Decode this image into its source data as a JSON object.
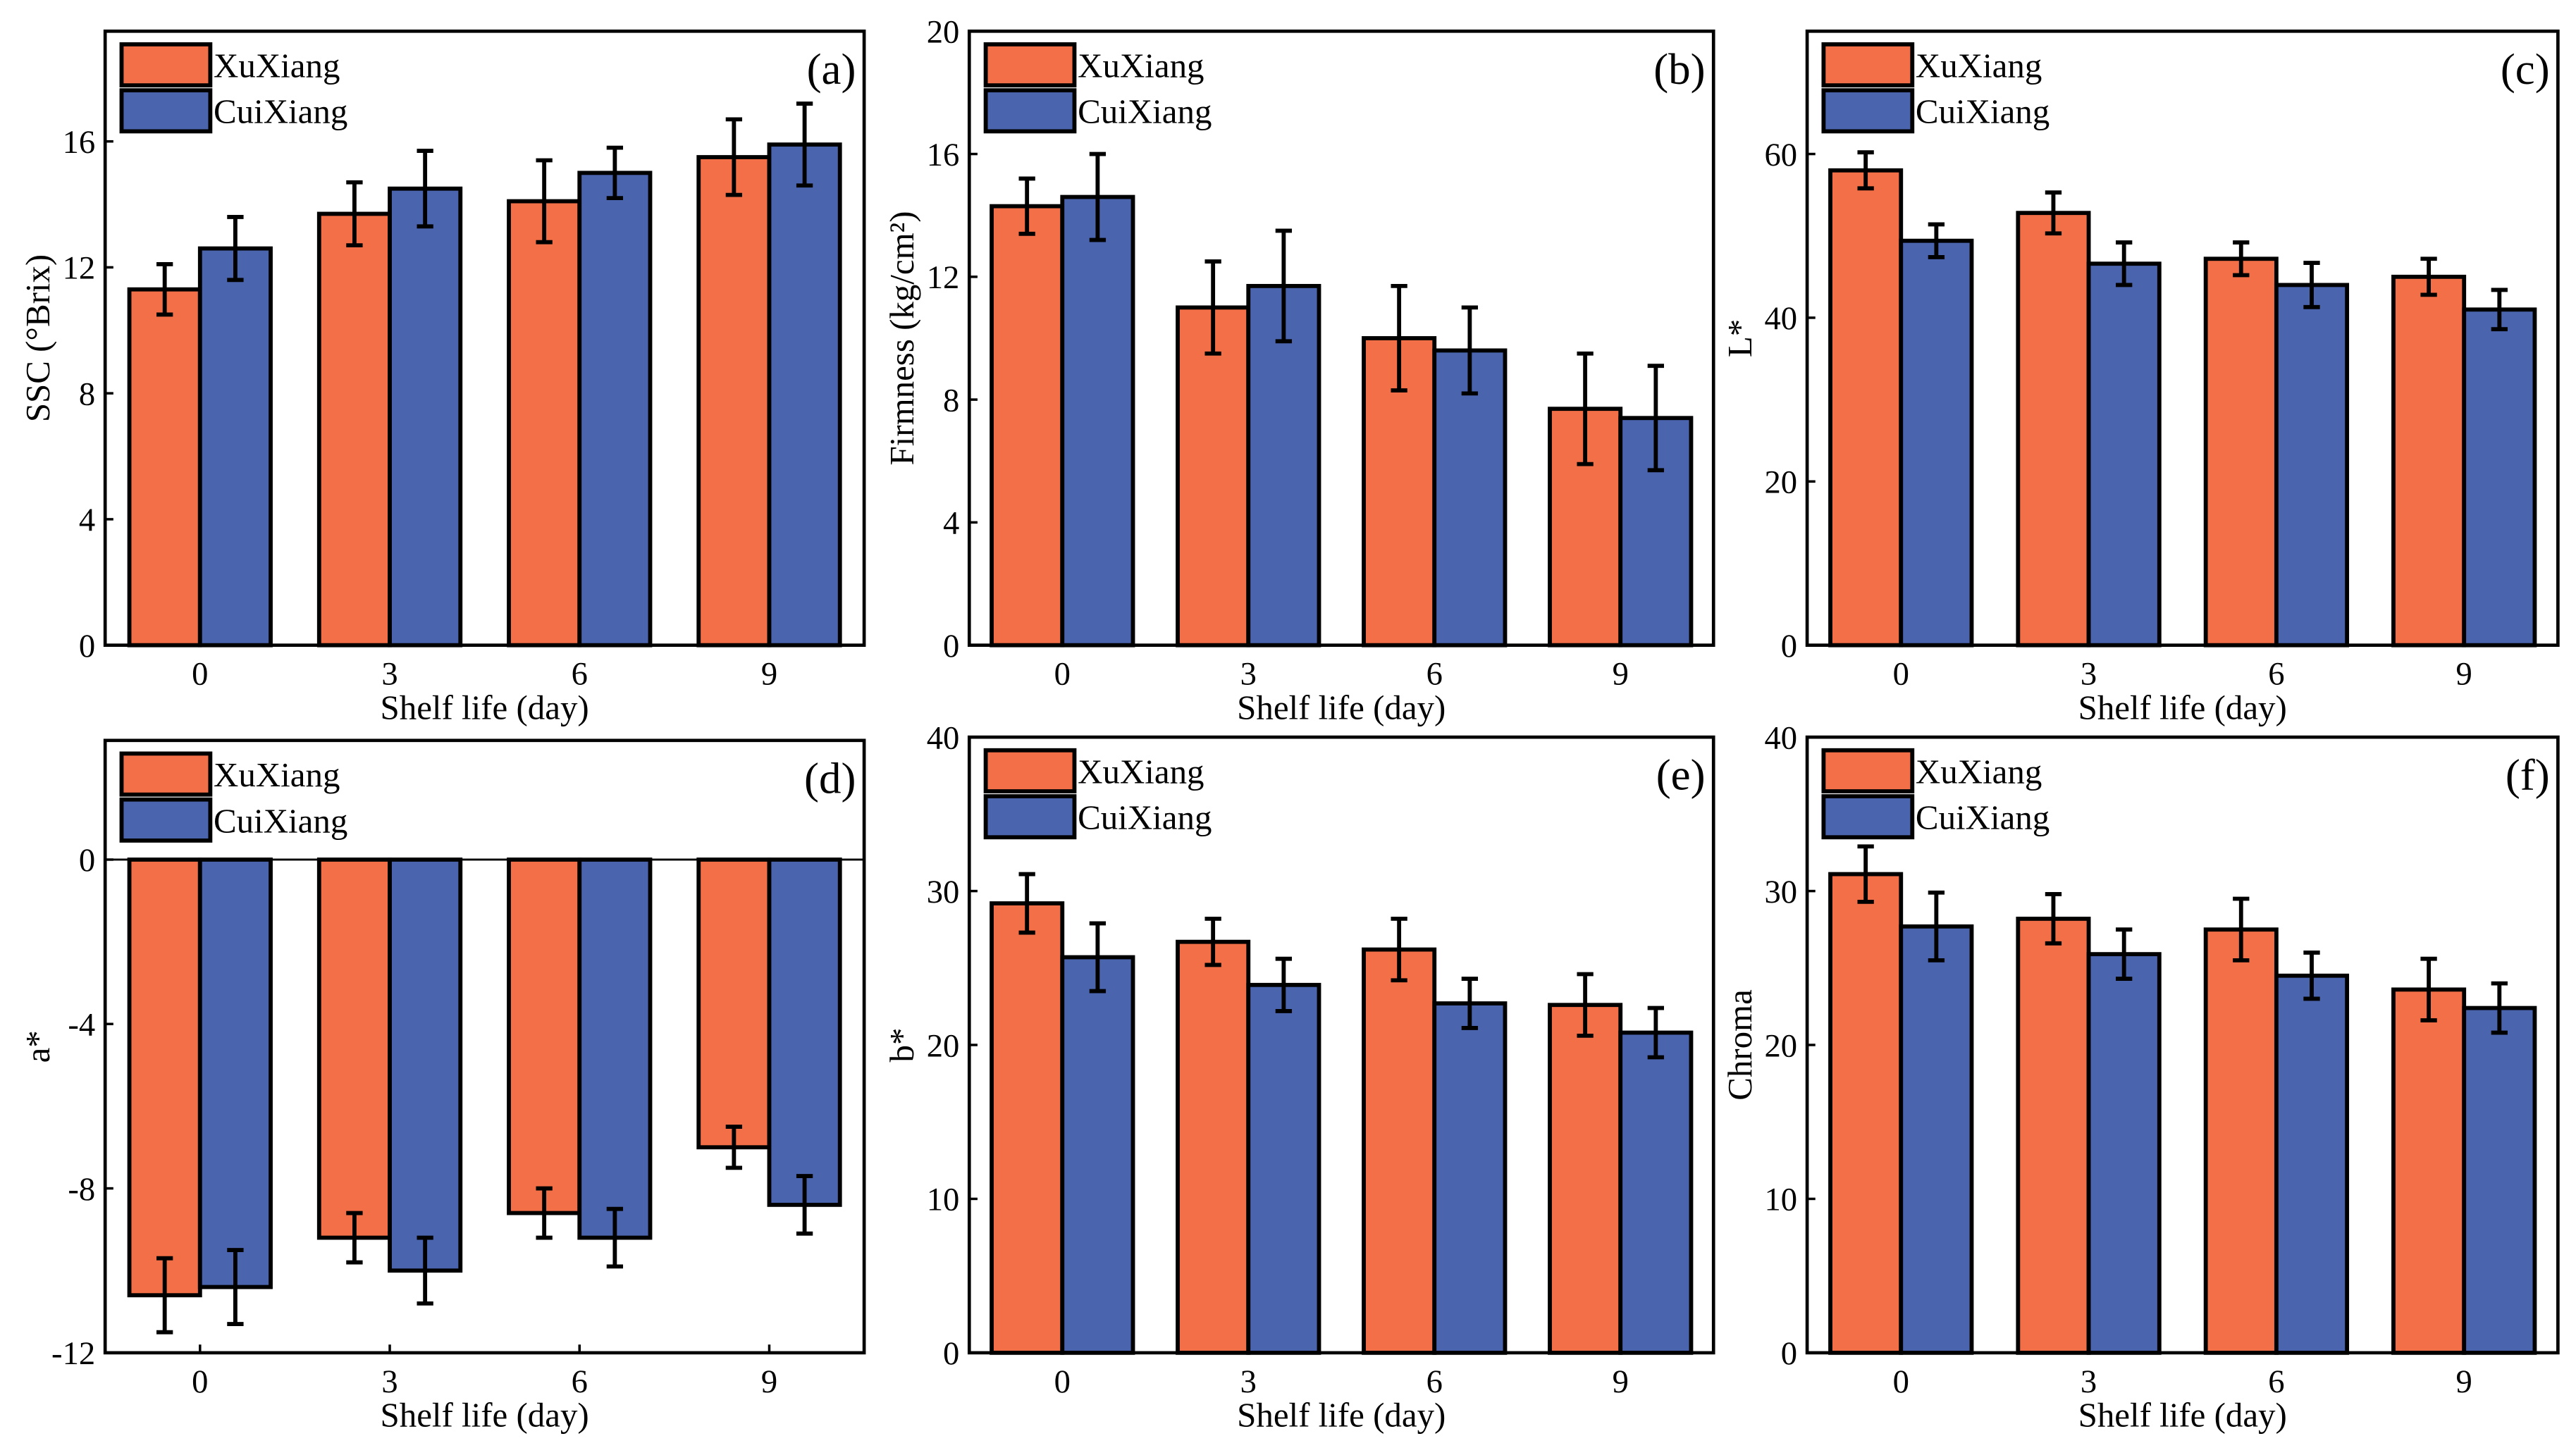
{
  "colors": {
    "XuXiang": "#F26F47",
    "CuiXiang": "#4A64AE"
  },
  "legend": [
    "XuXiang",
    "CuiXiang"
  ],
  "chart_data": [
    {
      "type": "bar",
      "panel": "(a)",
      "xlabel": "Shelf life (day)",
      "ylabel": "SSC (°Brix)",
      "categories": [
        "0",
        "3",
        "6",
        "9"
      ],
      "ylim": [
        0,
        19.5
      ],
      "yticks": [
        "0",
        "4",
        "8",
        "12",
        "16"
      ],
      "series": [
        {
          "name": "XuXiang",
          "values": [
            11.3,
            13.7,
            14.1,
            15.5
          ],
          "errors": [
            0.8,
            1.0,
            1.3,
            1.2
          ]
        },
        {
          "name": "CuiXiang",
          "values": [
            12.6,
            14.5,
            15.0,
            15.9
          ],
          "errors": [
            1.0,
            1.2,
            0.8,
            1.3
          ]
        }
      ]
    },
    {
      "type": "bar",
      "panel": "(b)",
      "xlabel": "Shelf life (day)",
      "ylabel": "Firmness (kg/cm²)",
      "categories": [
        "0",
        "3",
        "6",
        "9"
      ],
      "ylim": [
        0,
        20
      ],
      "yticks": [
        "0",
        "4",
        "8",
        "12",
        "16",
        "20"
      ],
      "series": [
        {
          "name": "XuXiang",
          "values": [
            14.3,
            11.0,
            10.0,
            7.7
          ],
          "errors": [
            0.9,
            1.5,
            1.7,
            1.8
          ]
        },
        {
          "name": "CuiXiang",
          "values": [
            14.6,
            11.7,
            9.6,
            7.4
          ],
          "errors": [
            1.4,
            1.8,
            1.4,
            1.7
          ]
        }
      ]
    },
    {
      "type": "bar",
      "panel": "(c)",
      "xlabel": "Shelf life (day)",
      "ylabel": "L*",
      "categories": [
        "0",
        "3",
        "6",
        "9"
      ],
      "ylim": [
        0,
        75
      ],
      "yticks": [
        "0",
        "20",
        "40",
        "60"
      ],
      "series": [
        {
          "name": "XuXiang",
          "values": [
            58.0,
            52.8,
            47.2,
            45.0
          ],
          "errors": [
            2.2,
            2.5,
            2.0,
            2.2
          ]
        },
        {
          "name": "CuiXiang",
          "values": [
            49.4,
            46.6,
            44.0,
            41.0
          ],
          "errors": [
            2.0,
            2.6,
            2.7,
            2.4
          ]
        }
      ]
    },
    {
      "type": "bar",
      "panel": "(d)",
      "xlabel": "Shelf life (day)",
      "ylabel": "a*",
      "categories": [
        "0",
        "3",
        "6",
        "9"
      ],
      "ylim": [
        -12,
        2.9
      ],
      "yticks": [
        "-12",
        "-8",
        "-4",
        "0"
      ],
      "series": [
        {
          "name": "XuXiang",
          "values": [
            -10.6,
            -9.2,
            -8.6,
            -7.0
          ],
          "errors": [
            0.9,
            0.6,
            0.6,
            0.5
          ]
        },
        {
          "name": "CuiXiang",
          "values": [
            -10.4,
            -10.0,
            -9.2,
            -8.4
          ],
          "errors": [
            0.9,
            0.8,
            0.7,
            0.7
          ]
        }
      ]
    },
    {
      "type": "bar",
      "panel": "(e)",
      "xlabel": "Shelf life (day)",
      "ylabel": "b*",
      "categories": [
        "0",
        "3",
        "6",
        "9"
      ],
      "ylim": [
        0,
        40
      ],
      "yticks": [
        "0",
        "10",
        "20",
        "30",
        "40"
      ],
      "series": [
        {
          "name": "XuXiang",
          "values": [
            29.2,
            26.7,
            26.2,
            22.6
          ],
          "errors": [
            1.9,
            1.5,
            2.0,
            2.0
          ]
        },
        {
          "name": "CuiXiang",
          "values": [
            25.7,
            23.9,
            22.7,
            20.8
          ],
          "errors": [
            2.2,
            1.7,
            1.6,
            1.6
          ]
        }
      ]
    },
    {
      "type": "bar",
      "panel": "(f)",
      "xlabel": "Shelf life (day)",
      "ylabel": "Chroma",
      "categories": [
        "0",
        "3",
        "6",
        "9"
      ],
      "ylim": [
        0,
        40
      ],
      "yticks": [
        "0",
        "10",
        "20",
        "30",
        "40"
      ],
      "series": [
        {
          "name": "XuXiang",
          "values": [
            31.1,
            28.2,
            27.5,
            23.6
          ],
          "errors": [
            1.8,
            1.6,
            2.0,
            2.0
          ]
        },
        {
          "name": "CuiXiang",
          "values": [
            27.7,
            25.9,
            24.5,
            22.4
          ],
          "errors": [
            2.2,
            1.6,
            1.5,
            1.6
          ]
        }
      ]
    }
  ]
}
